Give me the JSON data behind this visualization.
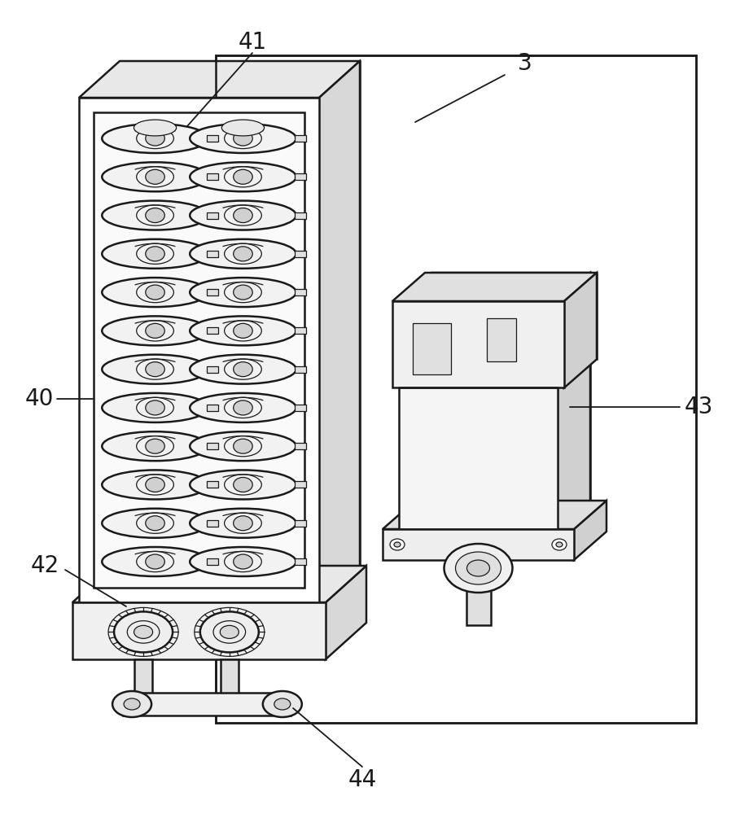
{
  "bg_color": "#ffffff",
  "line_color": "#1a1a1a",
  "lw": 1.8,
  "tlw": 0.9,
  "label_fontsize": 20
}
